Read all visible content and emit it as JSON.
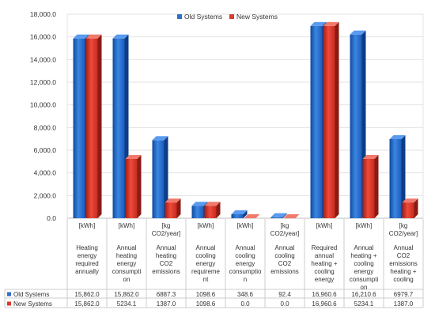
{
  "chart_data": {
    "type": "bar",
    "title": "",
    "xlabel": "",
    "ylabel": "",
    "ylim": [
      0,
      18000
    ],
    "y_ticks": [
      "0.0",
      "2,000.0",
      "4,000.0",
      "6,000.0",
      "8,000.0",
      "10,000.0",
      "12,000.0",
      "14,000.0",
      "16,000.0",
      "18,000.0"
    ],
    "grid": true,
    "legend_position": "top-center",
    "categories": [
      {
        "unit": "[kWh]",
        "label": [
          "Heating",
          "energy",
          "required",
          "annually"
        ]
      },
      {
        "unit": "[kWh]",
        "label": [
          "Annual",
          "heating",
          "energy",
          "consumpti",
          "on"
        ]
      },
      {
        "unit": "[kg CO2/year]",
        "label": [
          "Annual",
          "heating",
          "CO2",
          "emissions"
        ]
      },
      {
        "unit": "[kWh]",
        "label": [
          "Annual",
          "cooling",
          "energy",
          "requireme",
          "nt"
        ]
      },
      {
        "unit": "[kWh]",
        "label": [
          "Annual",
          "cooling",
          "energy",
          "consumptio",
          "n"
        ]
      },
      {
        "unit": "[kg CO2/year]",
        "label": [
          "Annual",
          "cooling",
          "CO2",
          "emissions"
        ]
      },
      {
        "unit": "[kWh]",
        "label": [
          "Required",
          "annual",
          "heating +",
          "cooling",
          "energy"
        ]
      },
      {
        "unit": "[kWh]",
        "label": [
          "Annual",
          "heating +",
          "cooling",
          "energy",
          "consumpti",
          "on"
        ]
      },
      {
        "unit": "[kg CO2/year]",
        "label": [
          "Annual",
          "CO2",
          "emissions",
          "heating +",
          "cooling"
        ]
      }
    ],
    "series": [
      {
        "name": "Old Systems",
        "color": "#2f6fc7",
        "values": [
          15862.0,
          15862.0,
          6887.3,
          1098.6,
          348.6,
          92.4,
          16960.6,
          16210.6,
          6979.7
        ],
        "value_labels": [
          "15,862.0",
          "15,862.0",
          "6887.3",
          "1098.6",
          "348.6",
          "92.4",
          "16,960.6",
          "16,210.6",
          "6979.7"
        ]
      },
      {
        "name": "New Systems",
        "color": "#d93b2e",
        "values": [
          15862.0,
          5234.1,
          1387.0,
          1098.6,
          0.0,
          0.0,
          16960.6,
          5234.1,
          1387.0
        ],
        "value_labels": [
          "15,862.0",
          "5234.1",
          "1387.0",
          "1098.6",
          "0.0",
          "0.0",
          "16,960.6",
          "5234.1",
          "1387.0"
        ]
      }
    ]
  }
}
